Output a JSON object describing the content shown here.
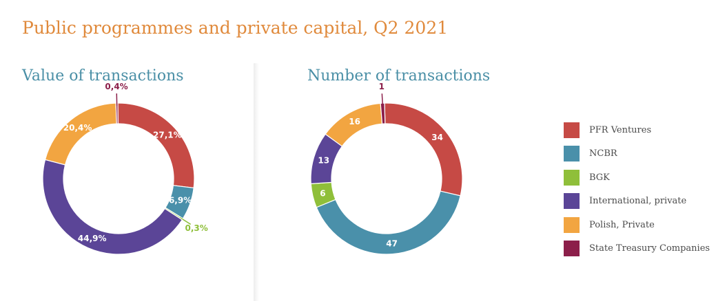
{
  "title": "Public programmes and private capital, Q2 2021",
  "chart_data": [
    {
      "type": "pie",
      "title": "Value of transactions",
      "categories": [
        "PFR Ventures",
        "NCBR",
        "BGK",
        "International, private",
        "Polish, Private",
        "State Treasury Companies"
      ],
      "values": [
        27.1,
        6.9,
        0.3,
        44.9,
        20.4,
        0.4
      ],
      "labels": [
        "27,1%",
        "6,9%",
        "0,3%",
        "44,9%",
        "20,4%",
        "0,4%"
      ],
      "donut": true
    },
    {
      "type": "pie",
      "title": "Number of transactions",
      "categories": [
        "PFR Ventures",
        "NCBR",
        "BGK",
        "International, private",
        "Polish, Private",
        "State Treasury Companies"
      ],
      "values": [
        34,
        47,
        6,
        13,
        16,
        1
      ],
      "labels": [
        "34",
        "47",
        "6",
        "13",
        "16",
        "1"
      ],
      "donut": true
    }
  ],
  "legend": [
    {
      "label": "PFR Ventures",
      "color": "#c64a45"
    },
    {
      "label": "NCBR",
      "color": "#4a90aa"
    },
    {
      "label": "BGK",
      "color": "#8fbf3a"
    },
    {
      "label": "International, private",
      "color": "#5b4597"
    },
    {
      "label": "Polish, Private",
      "color": "#f2a541"
    },
    {
      "label": "State Treasury Companies",
      "color": "#8c1f4a"
    }
  ]
}
